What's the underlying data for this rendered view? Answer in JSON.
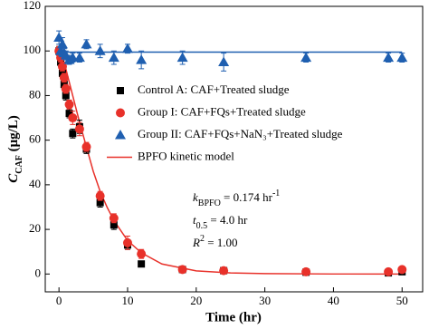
{
  "chart_data": {
    "type": "scatter",
    "xlabel": "Time (hr)",
    "ylabel": [
      {
        "text": "C",
        "style": "italic"
      },
      {
        "text": "CAF",
        "style": "sub"
      },
      {
        "text": " (μg/L)"
      }
    ],
    "xlim": [
      -2,
      53
    ],
    "ylim": [
      -8,
      120
    ],
    "xticks": [
      0,
      10,
      20,
      30,
      40,
      50
    ],
    "yticks": [
      0,
      20,
      40,
      60,
      80,
      100,
      120
    ],
    "series": [
      {
        "name": "Control A: CAF+Treated sludge",
        "color": "#000000",
        "marker": "square",
        "x": [
          0,
          0.25,
          0.5,
          0.75,
          1,
          1.5,
          2,
          3,
          4,
          6,
          8,
          10,
          12,
          18,
          24,
          36,
          48,
          50
        ],
        "values": [
          100,
          95,
          90,
          85,
          80,
          72,
          63,
          66,
          56,
          32,
          22,
          13,
          4.5,
          2,
          1.5,
          0.8,
          0.5,
          1
        ],
        "errors": [
          2,
          2,
          2,
          2,
          2,
          2,
          2,
          3,
          2,
          2,
          2,
          2,
          1,
          1,
          1,
          0.5,
          0.5,
          0.5
        ]
      },
      {
        "name": "Group I: CAF+FQs+Treated sludge",
        "color": "#e8312a",
        "marker": "circle",
        "x": [
          0,
          0.25,
          0.5,
          0.75,
          1,
          1.5,
          2,
          3,
          4,
          6,
          8,
          10,
          12,
          18,
          24,
          36,
          48,
          50
        ],
        "values": [
          100,
          97,
          93,
          88,
          83,
          76,
          70,
          65,
          57,
          35,
          25,
          14,
          9,
          2,
          1.5,
          1,
          1,
          2
        ],
        "errors": [
          2,
          2,
          2,
          2,
          2,
          2,
          3,
          3,
          2,
          2,
          2,
          3,
          2,
          1,
          1,
          0.5,
          0.5,
          0.5
        ]
      },
      {
        "name": "Group II: CAF+FQs+NaN₃+Treated sludge",
        "color": "#1f5fb0",
        "marker": "triangle",
        "x": [
          0,
          0.25,
          0.5,
          0.75,
          1,
          1.5,
          2,
          3,
          4,
          6,
          8,
          10,
          12,
          18,
          24,
          36,
          48,
          50
        ],
        "values": [
          106,
          100,
          103,
          99,
          98,
          96,
          97,
          97,
          103,
          100,
          97,
          101,
          96,
          97,
          95,
          97,
          97,
          97
        ],
        "errors": [
          3,
          2,
          3,
          2,
          2,
          2,
          2,
          2,
          2,
          3,
          3,
          2,
          4,
          3,
          4,
          2,
          2,
          2
        ]
      },
      {
        "name": "BPFO kinetic model",
        "color": "#e8312a",
        "marker": "line",
        "x": [
          0,
          1,
          2,
          3,
          4,
          5,
          6,
          7,
          8,
          10,
          12,
          15,
          20,
          25,
          30,
          40,
          50
        ],
        "values": [
          100,
          92,
          80,
          68,
          57,
          46,
          37,
          30,
          24,
          15,
          9.5,
          4.5,
          1.4,
          0.5,
          0.2,
          0,
          0
        ]
      },
      {
        "color": "#1f5fb0",
        "marker": "line",
        "x": [
          0,
          50
        ],
        "values": [
          99.5,
          99.5
        ]
      }
    ],
    "annotations": [
      [
        {
          "text": "k",
          "style": "italic"
        },
        {
          "text": "BPFO",
          "style": "sub"
        },
        {
          "text": " = 0.174 hr"
        },
        {
          "text": "-1",
          "style": "sup"
        }
      ],
      [
        {
          "text": "t",
          "style": "italic"
        },
        {
          "text": "0.5",
          "style": "sub"
        },
        {
          "text": " = 4.0 hr"
        }
      ],
      [
        {
          "text": "R",
          "style": "italic"
        },
        {
          "text": "2",
          "style": "sup"
        },
        {
          "text": " = 1.00"
        }
      ]
    ]
  }
}
